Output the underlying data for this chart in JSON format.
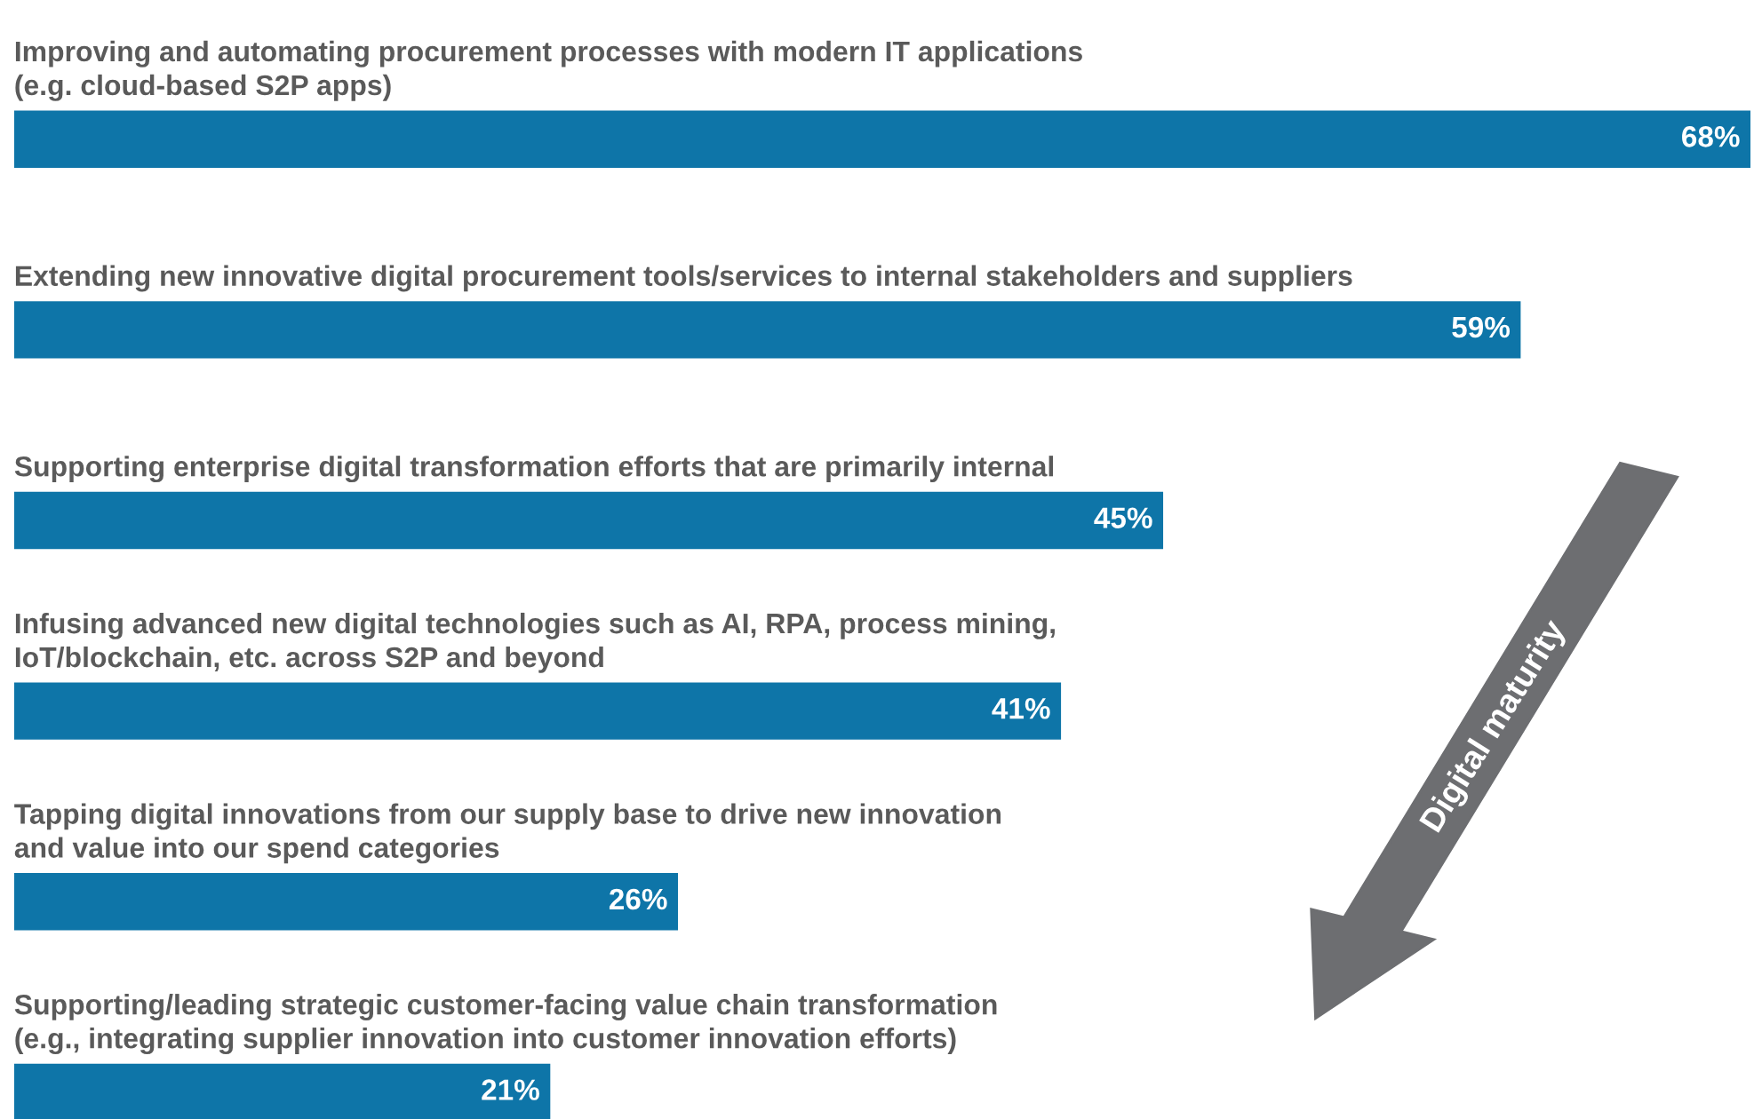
{
  "chart_data": {
    "type": "bar",
    "orientation": "horizontal",
    "categories": [
      "Improving and automating procurement processes with modern IT applications\n(e.g. cloud-based S2P apps)",
      "Extending new innovative digital procurement tools/services to internal stakeholders and suppliers",
      "Supporting enterprise digital transformation efforts that are primarily internal",
      "Infusing advanced new digital technologies such as AI, RPA, process mining,\nIoT/blockchain, etc. across S2P and beyond",
      "Tapping digital innovations from our supply base to drive new innovation\nand value into our spend categories",
      "Supporting/leading strategic customer-facing value chain transformation\n(e.g., integrating supplier innovation into customer innovation efforts)"
    ],
    "values": [
      68,
      59,
      45,
      41,
      26,
      21
    ],
    "value_labels": [
      "68%",
      "59%",
      "45%",
      "41%",
      "26%",
      "21%"
    ],
    "color": "#0e75a8",
    "xlim": [
      0,
      68
    ],
    "legend": false,
    "annotations": [
      "Digital maturity"
    ]
  }
}
